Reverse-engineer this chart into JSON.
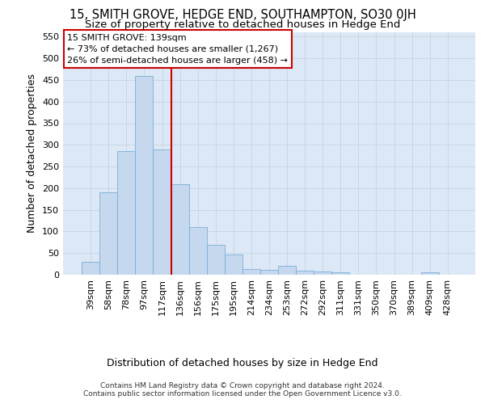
{
  "title": "15, SMITH GROVE, HEDGE END, SOUTHAMPTON, SO30 0JH",
  "subtitle": "Size of property relative to detached houses in Hedge End",
  "xlabel": "Distribution of detached houses by size in Hedge End",
  "ylabel": "Number of detached properties",
  "categories": [
    "39sqm",
    "58sqm",
    "78sqm",
    "97sqm",
    "117sqm",
    "136sqm",
    "156sqm",
    "175sqm",
    "195sqm",
    "214sqm",
    "234sqm",
    "253sqm",
    "272sqm",
    "292sqm",
    "311sqm",
    "331sqm",
    "350sqm",
    "370sqm",
    "389sqm",
    "409sqm",
    "428sqm"
  ],
  "values": [
    30,
    190,
    285,
    460,
    290,
    210,
    110,
    70,
    46,
    13,
    12,
    20,
    10,
    7,
    5,
    0,
    0,
    0,
    0,
    5,
    0
  ],
  "bar_color": "#c5d8ee",
  "bar_edge_color": "#7aaed6",
  "vline_x_index": 4.5,
  "vline_color": "#cc0000",
  "annotation_line1": "15 SMITH GROVE: 139sqm",
  "annotation_line2": "← 73% of detached houses are smaller (1,267)",
  "annotation_line3": "26% of semi-detached houses are larger (458) →",
  "annotation_box_color": "#ffffff",
  "annotation_box_edge_color": "#cc0000",
  "ylim": [
    0,
    560
  ],
  "yticks": [
    0,
    50,
    100,
    150,
    200,
    250,
    300,
    350,
    400,
    450,
    500,
    550
  ],
  "footer1": "Contains HM Land Registry data © Crown copyright and database right 2024.",
  "footer2": "Contains public sector information licensed under the Open Government Licence v3.0.",
  "background_color": "#ffffff",
  "plot_bg_color": "#dce8f5",
  "grid_color": "#c0cfe0",
  "title_fontsize": 10.5,
  "subtitle_fontsize": 9.5,
  "xlabel_fontsize": 9,
  "ylabel_fontsize": 9,
  "tick_fontsize": 8,
  "annotation_fontsize": 8,
  "footer_fontsize": 6.5
}
